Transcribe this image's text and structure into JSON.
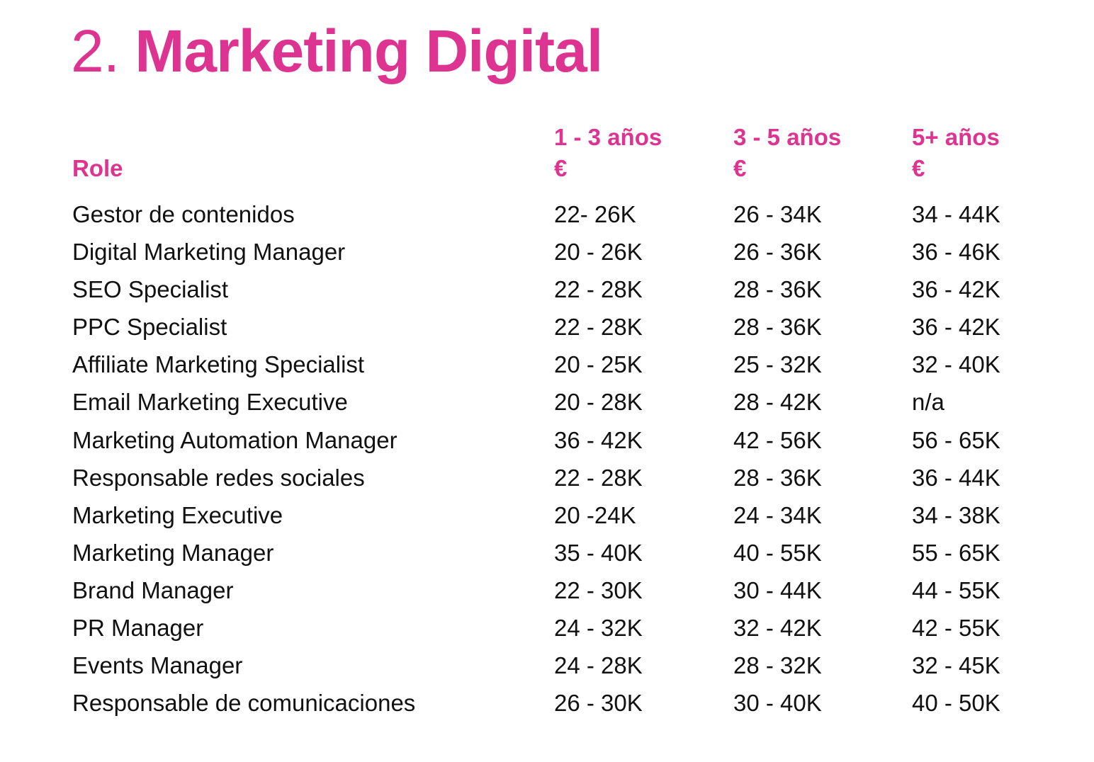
{
  "title": {
    "number": "2.",
    "name": "Marketing Digital"
  },
  "colors": {
    "accent": "#dc3490",
    "text": "#111111"
  },
  "table": {
    "headers": {
      "role": "Role",
      "columns": [
        {
          "years": "1 - 3 años",
          "currency": "€"
        },
        {
          "years": "3 - 5 años",
          "currency": "€"
        },
        {
          "years": "5+ años",
          "currency": "€"
        }
      ]
    },
    "rows": [
      {
        "role": "Gestor de contenidos",
        "c1": "22- 26K",
        "c2": "26 - 34K",
        "c3": "34 - 44K"
      },
      {
        "role": "Digital Marketing Manager",
        "c1": "20 - 26K",
        "c2": "26 - 36K",
        "c3": "36 - 46K"
      },
      {
        "role": "SEO Specialist",
        "c1": "22 - 28K",
        "c2": "28 - 36K",
        "c3": "36 - 42K"
      },
      {
        "role": "PPC Specialist",
        "c1": "22 - 28K",
        "c2": "28 - 36K",
        "c3": "36 - 42K"
      },
      {
        "role": "Affiliate Marketing Specialist",
        "c1": "20 - 25K",
        "c2": "25 - 32K",
        "c3": "32 - 40K"
      },
      {
        "role": "Email Marketing Executive",
        "c1": "20 - 28K",
        "c2": "28 - 42K",
        "c3": "n/a"
      },
      {
        "role": "Marketing Automation Manager",
        "c1": "36 - 42K",
        "c2": "42 - 56K",
        "c3": "56 - 65K"
      },
      {
        "role": "Responsable redes sociales",
        "c1": "22 - 28K",
        "c2": "28 - 36K",
        "c3": "36 - 44K"
      },
      {
        "role": "Marketing Executive",
        "c1": "20 -24K",
        "c2": "24 - 34K",
        "c3": "34 - 38K"
      },
      {
        "role": "Marketing Manager",
        "c1": "35 - 40K",
        "c2": "40 - 55K",
        "c3": "55 - 65K"
      },
      {
        "role": "Brand Manager",
        "c1": "22 - 30K",
        "c2": "30 - 44K",
        "c3": "44 - 55K"
      },
      {
        "role": "PR Manager",
        "c1": "24 - 32K",
        "c2": "32 - 42K",
        "c3": "42 - 55K"
      },
      {
        "role": "Events Manager",
        "c1": "24 - 28K",
        "c2": "28 - 32K",
        "c3": "32 - 45K"
      },
      {
        "role": "Responsable de comunicaciones",
        "c1": "26 - 30K",
        "c2": "30 - 40K",
        "c3": "40 - 50K"
      }
    ]
  }
}
